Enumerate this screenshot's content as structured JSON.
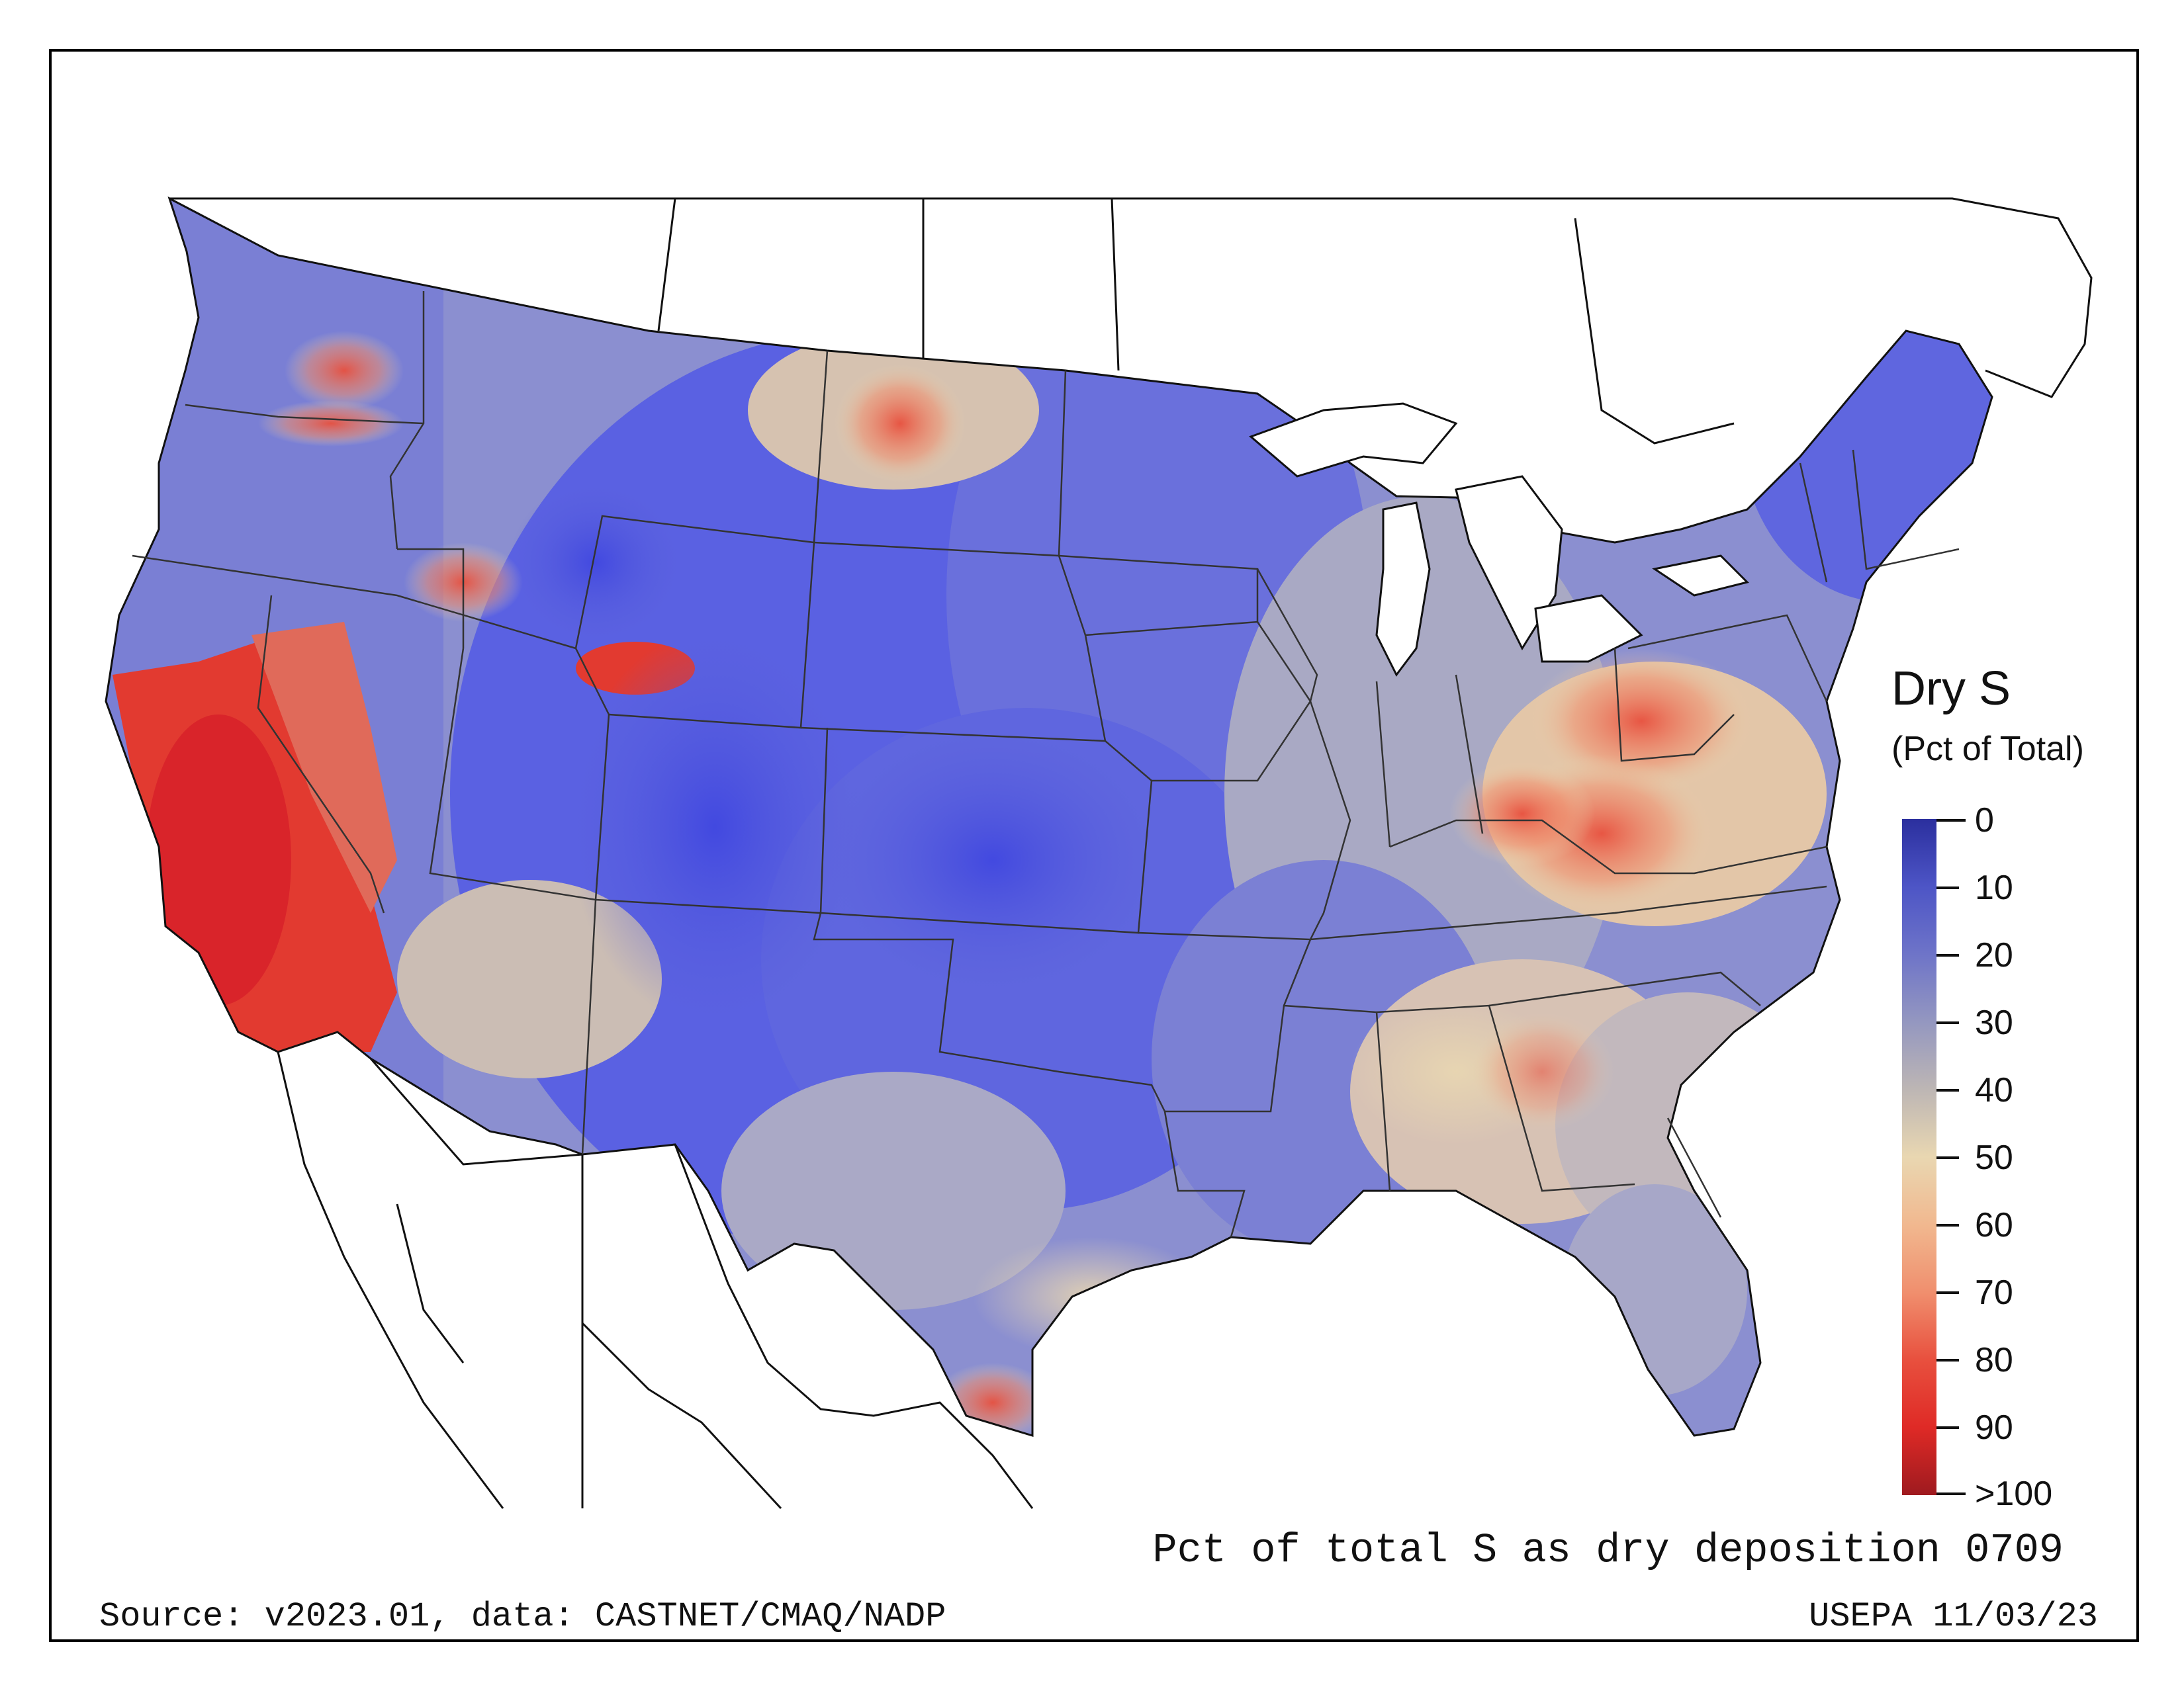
{
  "legend": {
    "title": "Dry S",
    "subtitle": "(Pct of Total)",
    "ticks": [
      "0",
      "10",
      "20",
      "30",
      "40",
      "50",
      "60",
      "70",
      "80",
      "90",
      ">100"
    ],
    "colors": [
      "#2b2f9e",
      "#4d55c6",
      "#6e74c8",
      "#9497c0",
      "#bdb6b4",
      "#e9d7b1",
      "#f1b88f",
      "#f08f6e",
      "#e8503e",
      "#df2a26",
      "#9e1a1f"
    ]
  },
  "caption": "Pct of total S as dry deposition 0709",
  "source": "Source: v2023.01, data: CASTNET/CMAQ/NADP",
  "stamp": "USEPA 11/03/23",
  "regions": {
    "west_coast": "high",
    "california": "very-high",
    "rockies": "low",
    "great_plains": "low",
    "midwest": "medium",
    "ohio_valley": "high",
    "northeast": "low",
    "southeast": "medium",
    "texas_gulf": "medium"
  }
}
